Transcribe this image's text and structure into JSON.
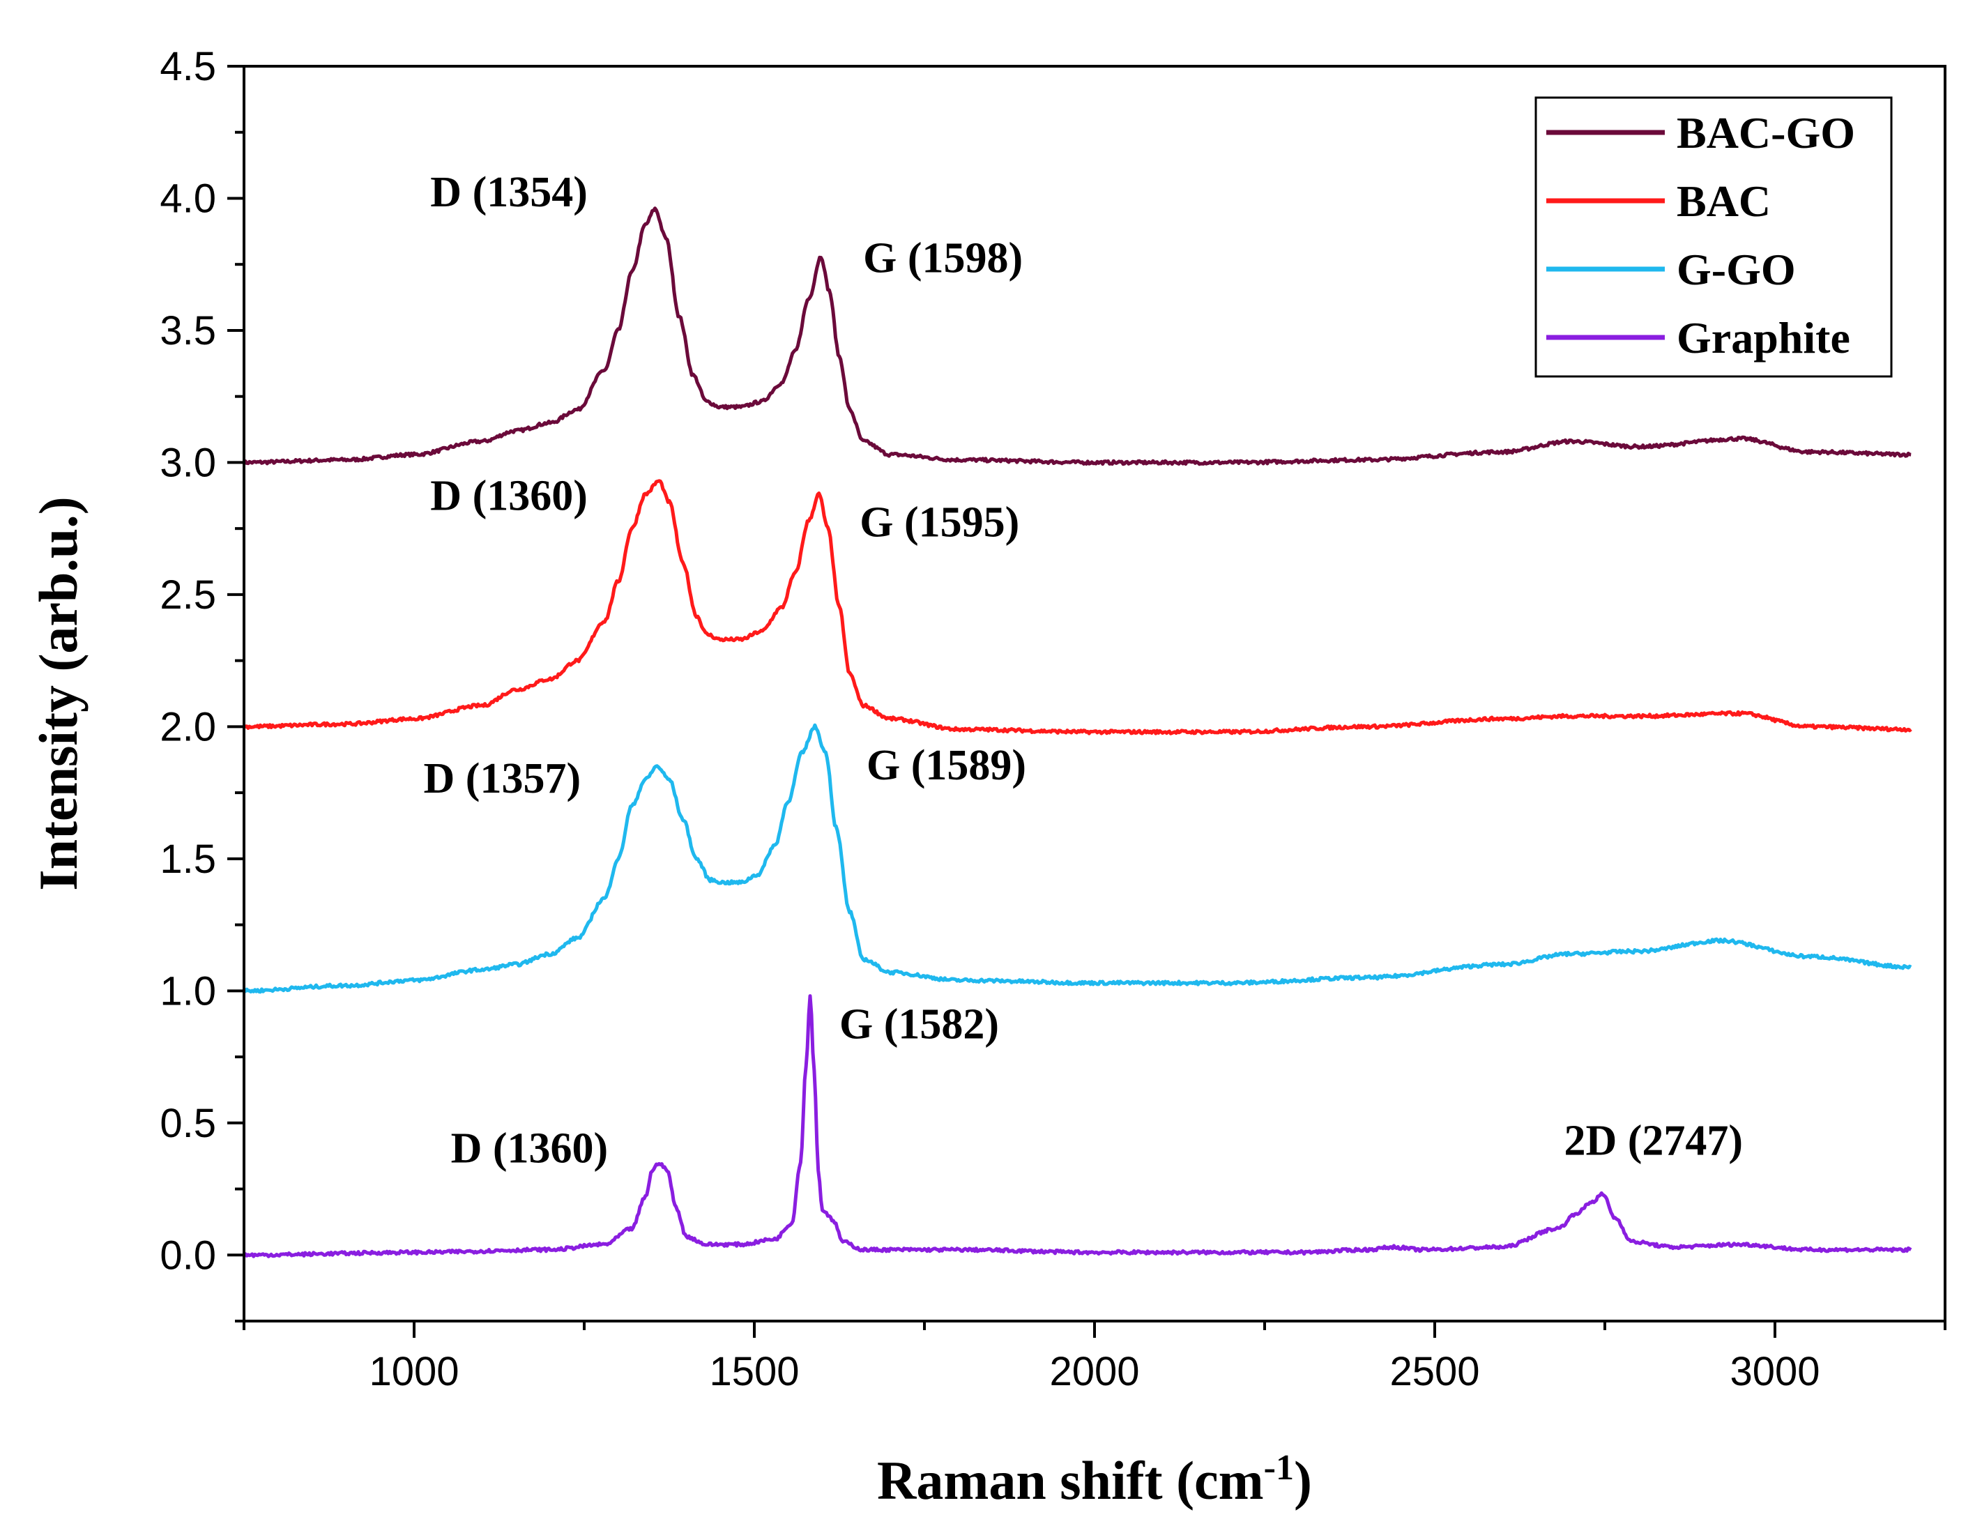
{
  "chart_data": {
    "type": "line",
    "title": "",
    "xlabel": "Raman shift (cm",
    "xlabel_sup": "-1",
    "xlabel_end": ")",
    "ylabel": "Intensity (arb.u.)",
    "xlim": [
      750,
      3250
    ],
    "ylim": [
      -0.25,
      4.5
    ],
    "x_ticks": [
      1000,
      1500,
      2000,
      2500,
      3000
    ],
    "x_tick_labels": [
      "1000",
      "1500",
      "2000",
      "2500",
      "3000"
    ],
    "y_ticks": [
      0.0,
      0.5,
      1.0,
      1.5,
      2.0,
      2.5,
      3.0,
      3.5,
      4.0,
      4.5
    ],
    "y_tick_labels": [
      "0.0",
      "0.5",
      "1.0",
      "1.5",
      "2.0",
      "2.5",
      "3.0",
      "3.5",
      "4.0",
      "4.5"
    ],
    "grid": false,
    "legend_position": "top-right",
    "series": [
      {
        "name": "BAC-GO",
        "color": "#6b0a3a",
        "x": [
          750,
          900,
          1000,
          1100,
          1150,
          1200,
          1240,
          1280,
          1300,
          1320,
          1340,
          1354,
          1370,
          1390,
          1410,
          1430,
          1450,
          1480,
          1510,
          1540,
          1560,
          1580,
          1598,
          1610,
          1625,
          1640,
          1660,
          1700,
          1800,
          2000,
          2200,
          2400,
          2600,
          2700,
          2800,
          2950,
          3050,
          3200
        ],
        "y": [
          3.0,
          3.01,
          3.03,
          3.08,
          3.12,
          3.15,
          3.2,
          3.35,
          3.5,
          3.72,
          3.9,
          3.96,
          3.85,
          3.55,
          3.33,
          3.23,
          3.21,
          3.21,
          3.23,
          3.3,
          3.42,
          3.62,
          3.78,
          3.65,
          3.4,
          3.2,
          3.08,
          3.03,
          3.01,
          3.0,
          3.0,
          3.01,
          3.04,
          3.08,
          3.06,
          3.09,
          3.04,
          3.03
        ]
      },
      {
        "name": "BAC",
        "color": "#ff1a1a",
        "x": [
          750,
          900,
          1000,
          1100,
          1150,
          1200,
          1240,
          1280,
          1300,
          1320,
          1340,
          1360,
          1375,
          1395,
          1415,
          1430,
          1450,
          1480,
          1510,
          1540,
          1560,
          1580,
          1595,
          1608,
          1625,
          1640,
          1660,
          1700,
          1800,
          2000,
          2200,
          2400,
          2600,
          2700,
          2800,
          2950,
          3050,
          3200
        ],
        "y": [
          2.0,
          2.01,
          2.03,
          2.08,
          2.14,
          2.18,
          2.25,
          2.4,
          2.55,
          2.75,
          2.88,
          2.93,
          2.85,
          2.62,
          2.42,
          2.35,
          2.33,
          2.33,
          2.36,
          2.45,
          2.58,
          2.78,
          2.88,
          2.75,
          2.45,
          2.2,
          2.08,
          2.03,
          1.99,
          1.98,
          1.98,
          2.0,
          2.03,
          2.04,
          2.04,
          2.05,
          2.0,
          1.99
        ]
      },
      {
        "name": "G-GO",
        "color": "#1fb8ee",
        "x": [
          750,
          900,
          1000,
          1100,
          1150,
          1200,
          1240,
          1280,
          1300,
          1320,
          1340,
          1357,
          1375,
          1395,
          1415,
          1435,
          1455,
          1480,
          1505,
          1530,
          1550,
          1570,
          1589,
          1605,
          1620,
          1640,
          1660,
          1700,
          1800,
          2000,
          2200,
          2400,
          2600,
          2700,
          2800,
          2920,
          3050,
          3200
        ],
        "y": [
          1.0,
          1.02,
          1.04,
          1.08,
          1.1,
          1.14,
          1.2,
          1.35,
          1.5,
          1.7,
          1.8,
          1.85,
          1.8,
          1.65,
          1.5,
          1.42,
          1.41,
          1.41,
          1.44,
          1.55,
          1.72,
          1.9,
          2.0,
          1.9,
          1.62,
          1.3,
          1.12,
          1.07,
          1.04,
          1.03,
          1.03,
          1.05,
          1.1,
          1.14,
          1.15,
          1.19,
          1.13,
          1.09
        ]
      },
      {
        "name": "Graphite",
        "color": "#8a1ee0",
        "x": [
          750,
          1000,
          1200,
          1280,
          1320,
          1340,
          1350,
          1360,
          1372,
          1385,
          1400,
          1430,
          1480,
          1530,
          1555,
          1568,
          1576,
          1582,
          1588,
          1594,
          1600,
          1610,
          1618,
          1630,
          1660,
          1800,
          2000,
          2300,
          2400,
          2440,
          2480,
          2600,
          2680,
          2710,
          2730,
          2747,
          2765,
          2790,
          2850,
          2950,
          3050,
          3200
        ],
        "y": [
          0.0,
          0.01,
          0.02,
          0.04,
          0.1,
          0.22,
          0.32,
          0.35,
          0.32,
          0.18,
          0.07,
          0.04,
          0.04,
          0.06,
          0.12,
          0.35,
          0.72,
          0.98,
          0.7,
          0.32,
          0.17,
          0.15,
          0.12,
          0.05,
          0.02,
          0.02,
          0.01,
          0.01,
          0.02,
          0.03,
          0.02,
          0.03,
          0.1,
          0.16,
          0.2,
          0.23,
          0.14,
          0.05,
          0.03,
          0.04,
          0.02,
          0.02
        ]
      }
    ],
    "annotations": [
      {
        "text": "D (1354)",
        "x": 1255,
        "y": 3.97,
        "anchor": "end"
      },
      {
        "text": "G (1598)",
        "x": 1660,
        "y": 3.72,
        "anchor": "start"
      },
      {
        "text": "D (1360)",
        "x": 1255,
        "y": 2.82,
        "anchor": "end"
      },
      {
        "text": "G (1595)",
        "x": 1655,
        "y": 2.72,
        "anchor": "start"
      },
      {
        "text": "D (1357)",
        "x": 1245,
        "y": 1.75,
        "anchor": "end"
      },
      {
        "text": "G (1589)",
        "x": 1665,
        "y": 1.8,
        "anchor": "start"
      },
      {
        "text": "G (1582)",
        "x": 1625,
        "y": 0.82,
        "anchor": "start"
      },
      {
        "text": "D (1360)",
        "x": 1285,
        "y": 0.35,
        "anchor": "end"
      },
      {
        "text": "2D (2747)",
        "x": 2690,
        "y": 0.38,
        "anchor": "start"
      }
    ]
  }
}
